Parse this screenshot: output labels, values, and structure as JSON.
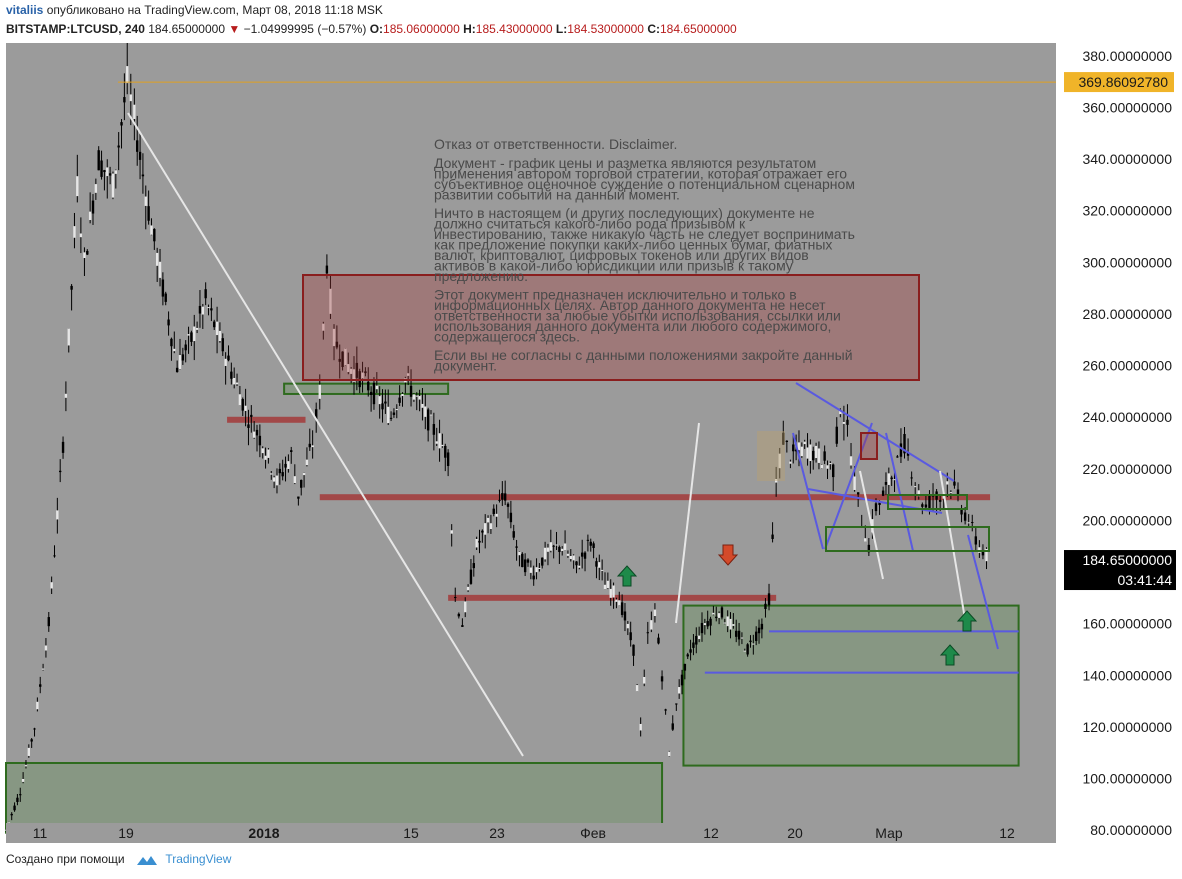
{
  "header": {
    "author": "vitaliis",
    "published_text": "опубликовано на TradingView.com, Март 08, 2018 11:18 MSK",
    "symbol": "BITSTAMP:LTCUSD, 240",
    "last": "184.65000000",
    "change": "−1.04999995 (−0.57%)",
    "o_label": "O:",
    "o_value": "185.06000000",
    "h_label": "H:",
    "h_value": "185.43000000",
    "l_label": "L:",
    "l_value": "184.53000000",
    "c_label": "C:",
    "c_value": "184.65000000"
  },
  "footer": {
    "created_with": "Создано при помощи",
    "brand": "TradingView"
  },
  "disclaimer": {
    "title": "Отказ от ответственности. Disclaimer.",
    "lines": [
      "Документ - график цены и разметка являются результатом",
      "применения автором торговой стратегии, которая отражает его",
      "субъективное оценочное суждение о потенциальном сценарном",
      "развитии событий на данный момент.",
      "",
      "Ничто в настоящем (и других последующих) документе не",
      "должно считаться какого-либо рода призывом к",
      "инвестированию, также никакую часть не следует воспринимать",
      "как предложение покупки каких-либо ценных бумаг, фиатных",
      "валют, криптовалют, цифровых токенов или других видов",
      "активов в какой-либо юрисдикции или призыв к такому",
      "предложению.",
      "",
      "Этот документ предназначен исключительно и только в",
      "информационных целях. Автор данного документа не несет",
      "ответственности за любые убытки использования, ссылки или",
      "использования данного документа или любого содержимого,",
      "содержащегося здесь.",
      "",
      "Если вы не согласны с данными положениями закройте данный",
      "документ."
    ]
  },
  "colors": {
    "chart_bg": "#9b9b9b",
    "candle": "#000000",
    "candle_up": "#e6e6e6",
    "red_zone": "#a33a3a",
    "green_zone": "#4a8a3a",
    "trend_blue": "#5a5ae0",
    "hline": "#e0a020"
  },
  "chart_data": {
    "type": "candlestick",
    "title": "BITSTAMP:LTCUSD, 240",
    "ylim": [
      75,
      385
    ],
    "y_ticks": [
      380,
      360,
      340,
      320,
      300,
      280,
      260,
      240,
      220,
      200,
      180,
      160,
      140,
      120,
      100,
      80
    ],
    "y_tick_labels": [
      "380.00000000",
      "360.00000000",
      "340.00000000",
      "320.00000000",
      "300.00000000",
      "280.00000000",
      "260.00000000",
      "240.00000000",
      "220.00000000",
      "200.00000000",
      "180.00000000",
      "160.00000000",
      "140.00000000",
      "120.00000000",
      "100.00000000",
      "80.00000000"
    ],
    "x_tick_labels": [
      "11",
      "19",
      "2018",
      "15",
      "23",
      "Фев",
      "12",
      "20",
      "Мар",
      "12"
    ],
    "horizontal_line_label": "369.86092780",
    "horizontal_line_value": 369.86,
    "last_price_label": "184.65000000",
    "countdown_label": "03:41:44",
    "price_path": [
      [
        0,
        80
      ],
      [
        2,
        95
      ],
      [
        4,
        120
      ],
      [
        6,
        160
      ],
      [
        8,
        230
      ],
      [
        10,
        330
      ],
      [
        11,
        300
      ],
      [
        13,
        340
      ],
      [
        15,
        330
      ],
      [
        17,
        370
      ],
      [
        18,
        355
      ],
      [
        20,
        320
      ],
      [
        22,
        290
      ],
      [
        24,
        260
      ],
      [
        26,
        270
      ],
      [
        28,
        285
      ],
      [
        30,
        270
      ],
      [
        32,
        255
      ],
      [
        34,
        240
      ],
      [
        36,
        230
      ],
      [
        38,
        215
      ],
      [
        40,
        225
      ],
      [
        41,
        210
      ],
      [
        43,
        230
      ],
      [
        44,
        250
      ],
      [
        45,
        300
      ],
      [
        46,
        270
      ],
      [
        48,
        260
      ],
      [
        50,
        255
      ],
      [
        52,
        248
      ],
      [
        54,
        240
      ],
      [
        56,
        255
      ],
      [
        58,
        245
      ],
      [
        60,
        235
      ],
      [
        62,
        225
      ],
      [
        63,
        170
      ],
      [
        64,
        160
      ],
      [
        66,
        190
      ],
      [
        68,
        200
      ],
      [
        70,
        210
      ],
      [
        72,
        185
      ],
      [
        74,
        180
      ],
      [
        76,
        188
      ],
      [
        78,
        190
      ],
      [
        80,
        182
      ],
      [
        82,
        192
      ],
      [
        84,
        175
      ],
      [
        86,
        170
      ],
      [
        88,
        150
      ],
      [
        89,
        120
      ],
      [
        90,
        155
      ],
      [
        91,
        165
      ],
      [
        92,
        140
      ],
      [
        93,
        110
      ],
      [
        94,
        130
      ],
      [
        96,
        150
      ],
      [
        98,
        160
      ],
      [
        100,
        165
      ],
      [
        102,
        158
      ],
      [
        104,
        150
      ],
      [
        106,
        160
      ],
      [
        107,
        170
      ],
      [
        108,
        215
      ],
      [
        109,
        232
      ],
      [
        110,
        225
      ],
      [
        112,
        228
      ],
      [
        114,
        225
      ],
      [
        116,
        220
      ],
      [
        117,
        245
      ],
      [
        118,
        235
      ],
      [
        119,
        215
      ],
      [
        120,
        200
      ],
      [
        121,
        190
      ],
      [
        122,
        205
      ],
      [
        123,
        210
      ],
      [
        125,
        222
      ],
      [
        126,
        230
      ],
      [
        127,
        220
      ],
      [
        128,
        210
      ],
      [
        129,
        205
      ],
      [
        130,
        210
      ],
      [
        131,
        208
      ],
      [
        132,
        215
      ],
      [
        133,
        212
      ],
      [
        134,
        205
      ],
      [
        135,
        200
      ],
      [
        136,
        192
      ],
      [
        137,
        188
      ],
      [
        138,
        185
      ]
    ],
    "zones_red": [
      {
        "from_x": 44,
        "to_x": 138,
        "price": 209
      },
      {
        "from_x": 62,
        "to_x": 108,
        "price": 170
      },
      {
        "from_x": 31,
        "to_x": 42,
        "price": 239
      }
    ],
    "zones_green": [
      {
        "x1": 0,
        "x2": 92,
        "y_top": 106,
        "y_bottom": 79
      },
      {
        "x1": 95,
        "x2": 142,
        "y_top": 167,
        "y_bottom": 105
      },
      {
        "x1": 39,
        "x2": 62,
        "y_top": 253,
        "y_bottom": 249
      }
    ],
    "support_lines": [
      {
        "x1": 107,
        "x2": 142,
        "price": 157
      },
      {
        "x1": 98,
        "x2": 142,
        "price": 141
      }
    ]
  }
}
